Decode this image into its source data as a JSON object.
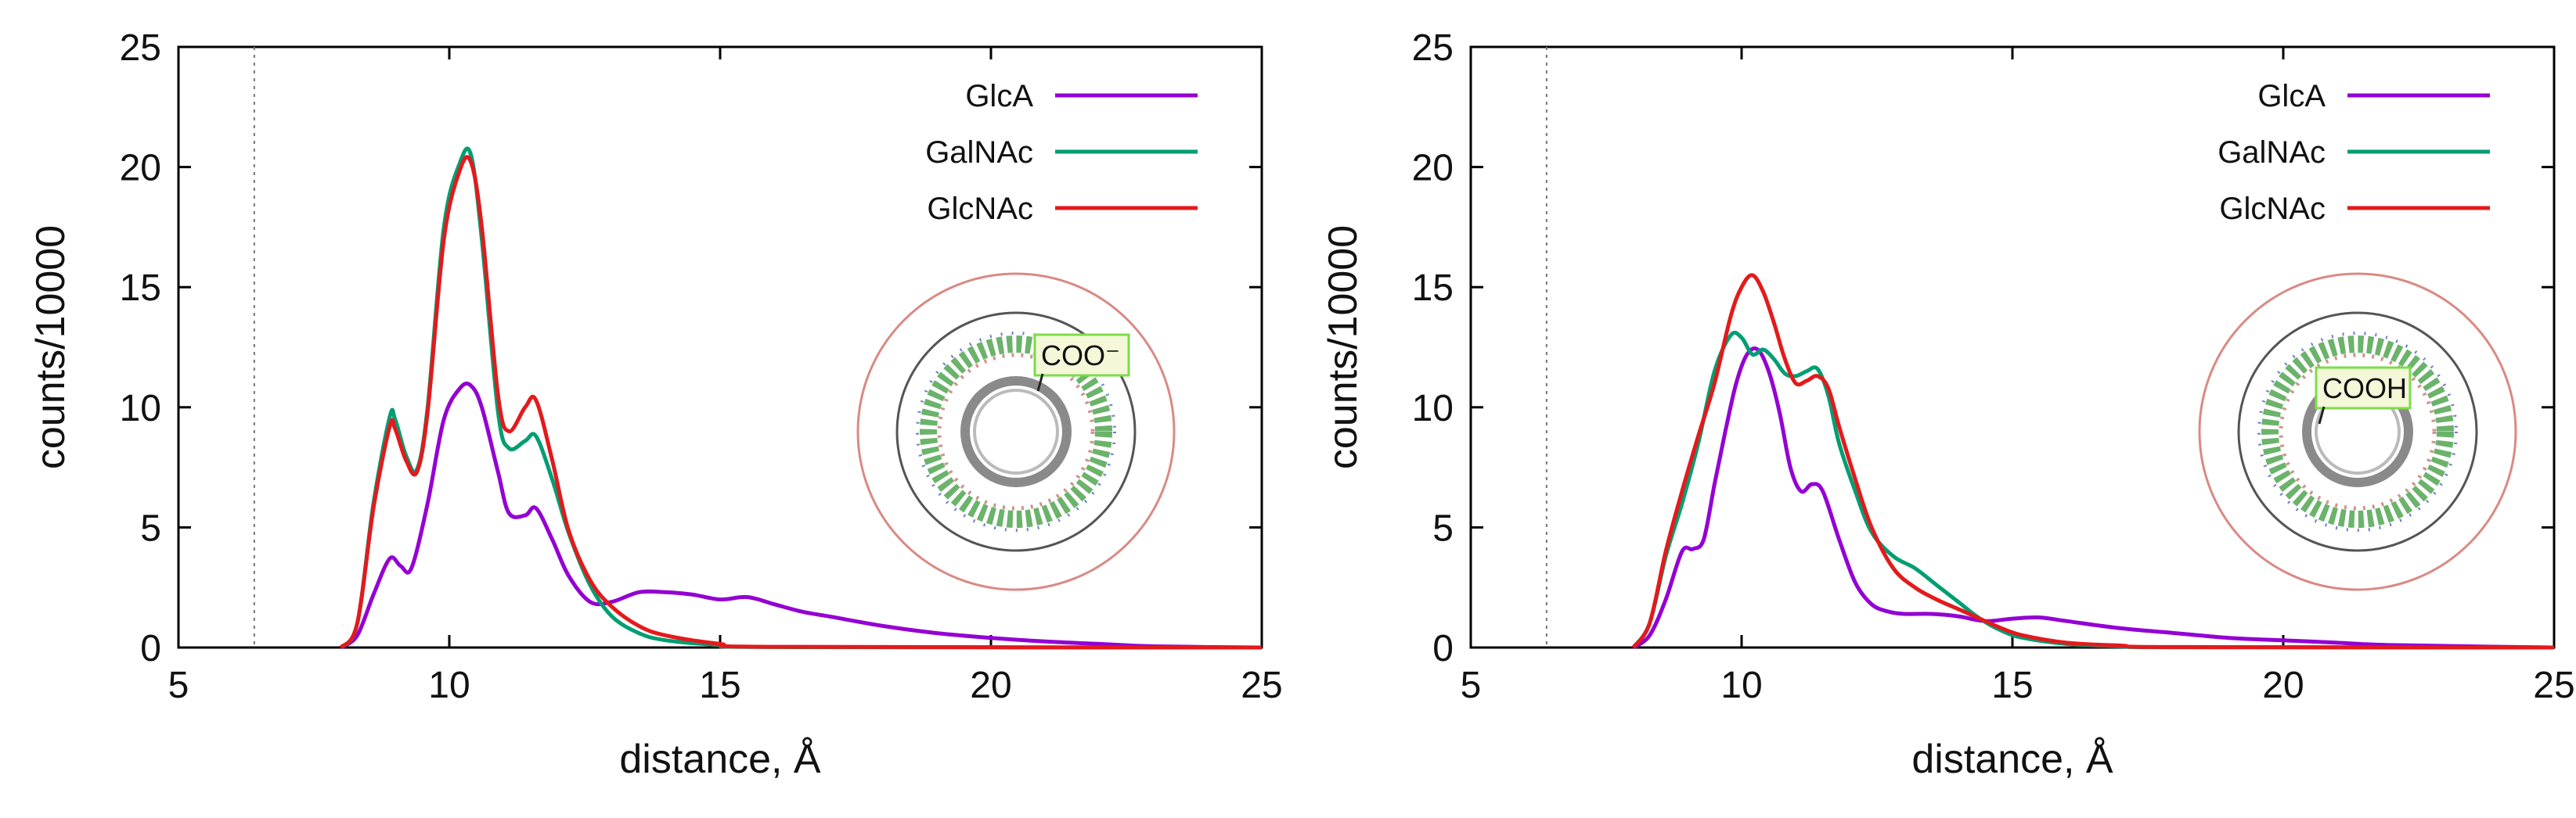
{
  "chart_data": [
    {
      "type": "line",
      "xlabel": "distance, Å",
      "ylabel": "counts/10000",
      "xlim": [
        5,
        25
      ],
      "ylim": [
        0,
        25
      ],
      "xticks": [
        "5",
        "10",
        "15",
        "20",
        "25"
      ],
      "yticks": [
        "0",
        "5",
        "10",
        "15",
        "20",
        "25"
      ],
      "vline_x": 6.4,
      "inset_label": "COO⁻",
      "series": [
        {
          "name": "GlcA",
          "color": "#9400D3",
          "x": [
            8.0,
            8.3,
            8.6,
            8.9,
            9.1,
            9.3,
            9.6,
            9.9,
            10.2,
            10.4,
            10.6,
            10.9,
            11.1,
            11.4,
            11.6,
            11.9,
            12.2,
            12.6,
            13.0,
            13.5,
            14.0,
            14.5,
            15.0,
            15.5,
            16.0,
            16.5,
            17.0,
            18.0,
            19.0,
            20.0,
            21.0,
            22.0,
            23.0,
            25.0
          ],
          "y": [
            0,
            0.5,
            2.2,
            3.7,
            3.4,
            3.3,
            6.0,
            9.5,
            10.8,
            10.9,
            10.0,
            7.3,
            5.6,
            5.5,
            5.8,
            4.5,
            3.0,
            1.9,
            1.9,
            2.3,
            2.3,
            2.2,
            2.0,
            2.1,
            1.8,
            1.5,
            1.3,
            0.9,
            0.6,
            0.4,
            0.25,
            0.15,
            0.05,
            0
          ]
        },
        {
          "name": "GalNAc",
          "color": "#009E73",
          "x": [
            8.0,
            8.3,
            8.6,
            8.9,
            9.0,
            9.2,
            9.4,
            9.6,
            9.9,
            10.2,
            10.4,
            10.6,
            10.9,
            11.1,
            11.4,
            11.6,
            11.9,
            12.2,
            12.6,
            13.0,
            13.5,
            14.0,
            15.0,
            16.0,
            25.0
          ],
          "y": [
            0,
            1.0,
            6.0,
            9.6,
            9.5,
            8.0,
            7.4,
            10.0,
            17.5,
            20.2,
            20.5,
            17.0,
            9.8,
            8.3,
            8.6,
            8.8,
            7.0,
            4.8,
            2.6,
            1.3,
            0.6,
            0.3,
            0.1,
            0.02,
            0
          ]
        },
        {
          "name": "GlcNAc",
          "color": "#E31A1C",
          "x": [
            8.0,
            8.3,
            8.6,
            8.9,
            9.0,
            9.2,
            9.4,
            9.6,
            9.9,
            10.2,
            10.4,
            10.6,
            10.9,
            11.1,
            11.4,
            11.6,
            11.9,
            12.2,
            12.6,
            13.0,
            13.5,
            14.0,
            15.0,
            16.0,
            25.0
          ],
          "y": [
            0,
            1.0,
            5.8,
            9.2,
            9.1,
            7.8,
            7.3,
            9.8,
            17.0,
            19.9,
            20.2,
            17.5,
            10.5,
            9.0,
            10.0,
            10.3,
            7.8,
            4.9,
            2.8,
            1.7,
            0.9,
            0.5,
            0.15,
            0.03,
            0
          ]
        }
      ]
    },
    {
      "type": "line",
      "xlabel": "distance, Å",
      "ylabel": "counts/10000",
      "xlim": [
        5,
        25
      ],
      "ylim": [
        0,
        25
      ],
      "xticks": [
        "5",
        "10",
        "15",
        "20",
        "25"
      ],
      "yticks": [
        "0",
        "5",
        "10",
        "15",
        "20",
        "25"
      ],
      "vline_x": 6.4,
      "inset_label": "COOH",
      "series": [
        {
          "name": "GlcA",
          "color": "#9400D3",
          "x": [
            8.0,
            8.3,
            8.6,
            8.9,
            9.1,
            9.3,
            9.5,
            9.7,
            9.9,
            10.1,
            10.3,
            10.5,
            10.7,
            10.9,
            11.1,
            11.3,
            11.5,
            11.8,
            12.1,
            12.4,
            12.7,
            13.0,
            13.5,
            14.0,
            14.5,
            15.0,
            15.5,
            16.0,
            17.0,
            18.0,
            19.0,
            20.0,
            21.0,
            22.0,
            25.0
          ],
          "y": [
            0,
            0.5,
            2.0,
            4.0,
            4.1,
            4.5,
            6.8,
            9.0,
            11.0,
            12.2,
            12.4,
            11.5,
            9.8,
            7.5,
            6.5,
            6.8,
            6.5,
            4.5,
            2.7,
            1.8,
            1.5,
            1.4,
            1.4,
            1.3,
            1.1,
            1.2,
            1.25,
            1.1,
            0.8,
            0.6,
            0.4,
            0.3,
            0.2,
            0.1,
            0
          ]
        },
        {
          "name": "GalNAc",
          "color": "#009E73",
          "x": [
            8.0,
            8.3,
            8.6,
            8.9,
            9.2,
            9.5,
            9.8,
            10.0,
            10.2,
            10.4,
            10.6,
            10.8,
            11.0,
            11.2,
            11.4,
            11.6,
            11.8,
            12.1,
            12.4,
            12.8,
            13.2,
            13.6,
            14.0,
            14.4,
            14.8,
            15.2,
            16.0,
            17.0,
            18.0,
            25.0
          ],
          "y": [
            0,
            1.0,
            3.8,
            6.0,
            8.5,
            11.5,
            13.0,
            12.9,
            12.2,
            12.4,
            12.0,
            11.4,
            11.3,
            11.5,
            11.6,
            10.5,
            8.5,
            6.5,
            4.8,
            3.8,
            3.3,
            2.6,
            1.9,
            1.2,
            0.7,
            0.4,
            0.15,
            0.05,
            0.01,
            0
          ]
        },
        {
          "name": "GlcNAc",
          "color": "#E31A1C",
          "x": [
            8.0,
            8.3,
            8.6,
            8.9,
            9.2,
            9.5,
            9.8,
            10.0,
            10.2,
            10.4,
            10.6,
            10.8,
            11.0,
            11.2,
            11.4,
            11.6,
            11.8,
            12.1,
            12.4,
            12.8,
            13.2,
            13.6,
            14.0,
            14.4,
            14.8,
            15.2,
            16.0,
            17.0,
            18.0,
            25.0
          ],
          "y": [
            0,
            1.0,
            4.0,
            6.5,
            8.8,
            11.0,
            13.8,
            15.0,
            15.5,
            14.8,
            13.5,
            12.0,
            11.0,
            11.1,
            11.3,
            10.8,
            9.2,
            7.0,
            5.0,
            3.3,
            2.5,
            2.0,
            1.6,
            1.2,
            0.8,
            0.5,
            0.2,
            0.08,
            0.02,
            0
          ]
        }
      ]
    }
  ]
}
